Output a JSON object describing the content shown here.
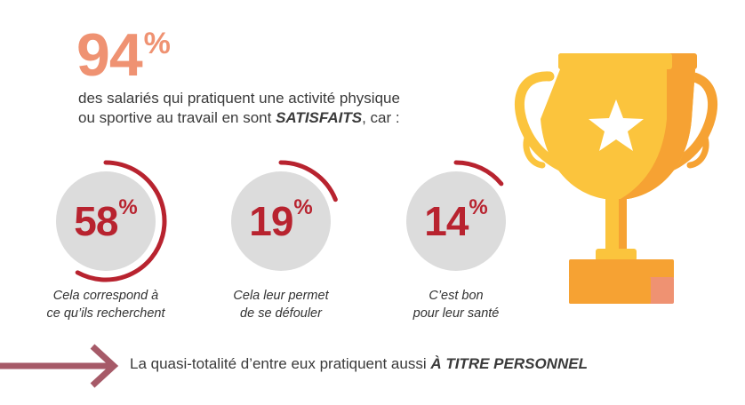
{
  "headline": {
    "value": "94",
    "unit": "%"
  },
  "lead": {
    "line1": "des salariés qui pratiquent une activité physique",
    "line2_prefix": "ou sportive au travail en sont ",
    "line2_emphasis": "SATISFAITS",
    "line2_suffix": ", car :"
  },
  "stats": [
    {
      "value": "58",
      "unit": "%",
      "fraction": 0.58,
      "caption_line1": "Cela correspond à",
      "caption_line2": "ce qu’ils recherchent"
    },
    {
      "value": "19",
      "unit": "%",
      "fraction": 0.19,
      "caption_line1": "Cela leur permet",
      "caption_line2": "de se défouler"
    },
    {
      "value": "14",
      "unit": "%",
      "fraction": 0.14,
      "caption_line1": "C’est bon",
      "caption_line2": "pour leur santé"
    }
  ],
  "bottom": {
    "prefix": "La quasi-totalité d’entre eux pratiquent aussi ",
    "emphasis": "À TITRE PERSONNEL"
  },
  "colors": {
    "headline": "#ef9272",
    "stat_text": "#b8232f",
    "ring": "#b8232f",
    "circle_fill": "#dcdcdc",
    "arrow": "#a65a68",
    "trophy_gold": "#fbc43d",
    "trophy_orange": "#f6a233"
  },
  "icons": {
    "trophy": "trophy-icon",
    "star": "star-icon",
    "arrow": "arrow-right-icon"
  }
}
